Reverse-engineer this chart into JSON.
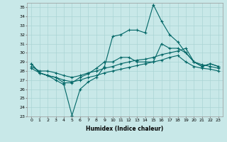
{
  "xlabel": "Humidex (Indice chaleur)",
  "xlim": [
    -0.5,
    23.5
  ],
  "ylim": [
    23,
    35.5
  ],
  "xticks": [
    0,
    1,
    2,
    3,
    4,
    5,
    6,
    7,
    8,
    9,
    10,
    11,
    12,
    13,
    14,
    15,
    16,
    17,
    18,
    19,
    20,
    21,
    22,
    23
  ],
  "yticks": [
    23,
    24,
    25,
    26,
    27,
    28,
    29,
    30,
    31,
    32,
    33,
    34,
    35
  ],
  "bg_color": "#c8e8e8",
  "line_color": "#006666",
  "grid_color": "#aad4d4",
  "lines": [
    [
      28.8,
      27.8,
      27.5,
      27.3,
      26.7,
      26.7,
      27.3,
      27.7,
      28.3,
      29.0,
      29.0,
      29.5,
      29.5,
      29.0,
      29.0,
      29.0,
      31.0,
      30.5,
      30.5,
      30.0,
      29.0,
      28.5,
      28.8,
      28.5
    ],
    [
      28.8,
      27.8,
      27.5,
      27.0,
      26.5,
      23.1,
      26.0,
      26.8,
      27.3,
      28.5,
      31.8,
      32.0,
      32.5,
      32.5,
      32.2,
      35.3,
      33.5,
      32.0,
      31.2,
      30.0,
      29.0,
      28.5,
      28.8,
      28.5
    ],
    [
      28.5,
      28.0,
      28.0,
      27.8,
      27.5,
      27.3,
      27.5,
      27.8,
      28.0,
      28.3,
      28.5,
      28.8,
      29.0,
      29.2,
      29.3,
      29.5,
      29.8,
      30.0,
      30.2,
      30.5,
      29.0,
      28.7,
      28.5,
      28.3
    ],
    [
      28.3,
      27.8,
      27.5,
      27.3,
      27.0,
      26.8,
      27.0,
      27.3,
      27.5,
      27.8,
      28.0,
      28.2,
      28.4,
      28.6,
      28.8,
      29.0,
      29.2,
      29.5,
      29.7,
      29.0,
      28.5,
      28.3,
      28.2,
      28.0
    ]
  ]
}
